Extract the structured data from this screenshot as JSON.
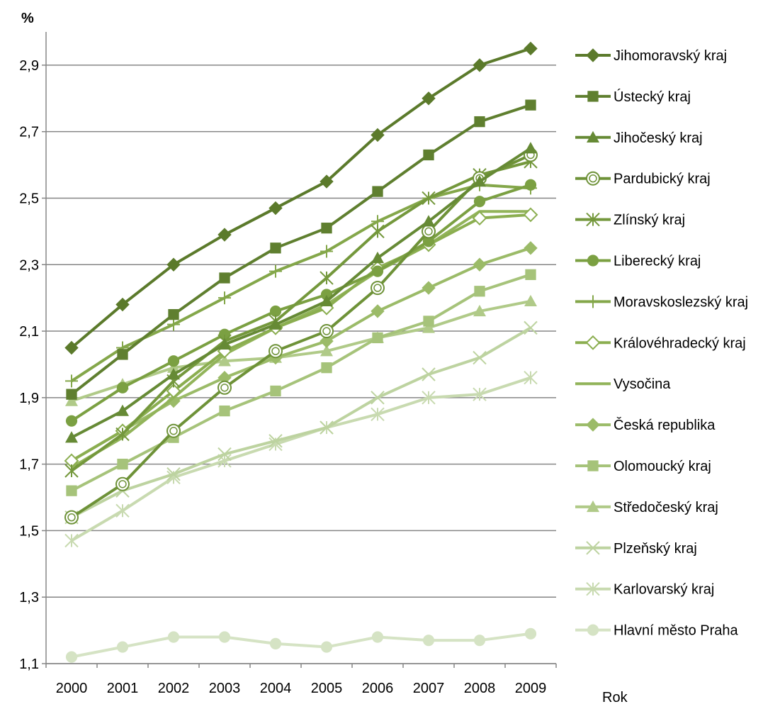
{
  "chart_data": {
    "type": "line",
    "ylabel": "%",
    "xlabel": "Rok",
    "x": [
      "2000",
      "2001",
      "2002",
      "2003",
      "2004",
      "2005",
      "2006",
      "2007",
      "2008",
      "2009"
    ],
    "ylim": [
      1.1,
      3.0
    ],
    "yticks": [
      "1,1",
      "1,3",
      "1,5",
      "1,7",
      "1,9",
      "2,1",
      "2,3",
      "2,5",
      "2,7",
      "2,9"
    ],
    "grid": true,
    "legend_position": "right",
    "series": [
      {
        "name": "Jihomoravský kraj",
        "marker": "diamond",
        "color": "#5b7a2b",
        "values": [
          2.05,
          2.18,
          2.3,
          2.39,
          2.47,
          2.55,
          2.69,
          2.8,
          2.9,
          2.95
        ]
      },
      {
        "name": "Ústecký kraj",
        "marker": "square",
        "color": "#5f7f2f",
        "values": [
          1.91,
          2.03,
          2.15,
          2.26,
          2.35,
          2.41,
          2.52,
          2.63,
          2.73,
          2.78
        ]
      },
      {
        "name": "Jihočeský kraj",
        "marker": "triangle",
        "color": "#668a35",
        "values": [
          1.78,
          1.86,
          1.97,
          2.06,
          2.12,
          2.19,
          2.32,
          2.43,
          2.55,
          2.65
        ]
      },
      {
        "name": "Pardubický kraj",
        "marker": "circle-open",
        "color": "#6e9238",
        "values": [
          1.54,
          1.64,
          1.8,
          1.93,
          2.04,
          2.1,
          2.23,
          2.4,
          2.56,
          2.63
        ]
      },
      {
        "name": "Zlínský kraj",
        "marker": "star",
        "color": "#74983c",
        "values": [
          1.68,
          1.79,
          1.95,
          2.07,
          2.13,
          2.26,
          2.4,
          2.5,
          2.57,
          2.61
        ]
      },
      {
        "name": "Liberecký kraj",
        "marker": "circle",
        "color": "#7ba042",
        "values": [
          1.83,
          1.93,
          2.01,
          2.09,
          2.16,
          2.21,
          2.28,
          2.37,
          2.49,
          2.54
        ]
      },
      {
        "name": "Moravskoslezský kraj",
        "marker": "plus",
        "color": "#84a74a",
        "values": [
          1.95,
          2.05,
          2.12,
          2.2,
          2.28,
          2.34,
          2.43,
          2.5,
          2.54,
          2.53
        ]
      },
      {
        "name": "Královéhradecký kraj",
        "marker": "diamond-open",
        "color": "#8bae50",
        "values": [
          1.71,
          1.8,
          1.92,
          2.04,
          2.11,
          2.17,
          2.29,
          2.36,
          2.44,
          2.45
        ]
      },
      {
        "name": "Vysočina",
        "marker": "none",
        "color": "#92b45a",
        "values": [
          1.69,
          1.78,
          1.9,
          2.03,
          2.11,
          2.18,
          2.28,
          2.36,
          2.46,
          2.46
        ]
      },
      {
        "name": "Česká republika",
        "marker": "diamond",
        "color": "#9bbb68",
        "values": [
          1.71,
          1.8,
          1.89,
          1.96,
          2.02,
          2.07,
          2.16,
          2.23,
          2.3,
          2.35
        ]
      },
      {
        "name": "Olomoucký kraj",
        "marker": "square",
        "color": "#a6c37a",
        "values": [
          1.62,
          1.7,
          1.78,
          1.86,
          1.92,
          1.99,
          2.08,
          2.13,
          2.22,
          2.27
        ]
      },
      {
        "name": "Středočeský kraj",
        "marker": "triangle",
        "color": "#b0ca88",
        "values": [
          1.89,
          1.94,
          1.99,
          2.01,
          2.02,
          2.04,
          2.08,
          2.11,
          2.16,
          2.19
        ]
      },
      {
        "name": "Plzeňský kraj",
        "marker": "x",
        "color": "#bdd3a0",
        "values": [
          1.54,
          1.62,
          1.67,
          1.73,
          1.77,
          1.81,
          1.9,
          1.97,
          2.02,
          2.11
        ]
      },
      {
        "name": "Karlovarský kraj",
        "marker": "star",
        "color": "#c8dab0",
        "values": [
          1.47,
          1.56,
          1.66,
          1.71,
          1.76,
          1.81,
          1.85,
          1.9,
          1.91,
          1.96
        ]
      },
      {
        "name": "Hlavní město Praha",
        "marker": "circle",
        "color": "#d5e3c4",
        "values": [
          1.12,
          1.15,
          1.18,
          1.18,
          1.16,
          1.15,
          1.18,
          1.17,
          1.17,
          1.19
        ]
      }
    ]
  }
}
